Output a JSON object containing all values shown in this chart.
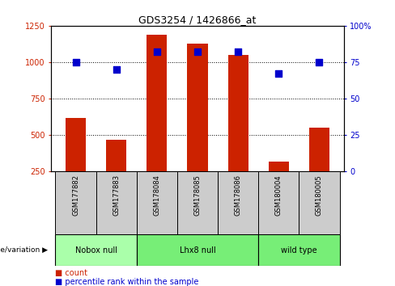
{
  "title": "GDS3254 / 1426866_at",
  "samples": [
    "GSM177882",
    "GSM177883",
    "GSM178084",
    "GSM178085",
    "GSM178086",
    "GSM180004",
    "GSM180005"
  ],
  "counts": [
    620,
    470,
    1190,
    1130,
    1050,
    320,
    550
  ],
  "percentiles": [
    75,
    70,
    82,
    82,
    82,
    67,
    75
  ],
  "bar_color": "#cc2200",
  "dot_color": "#0000cc",
  "ylim_left": [
    250,
    1250
  ],
  "ylim_right": [
    0,
    100
  ],
  "yticks_left": [
    250,
    500,
    750,
    1000,
    1250
  ],
  "yticks_right": [
    0,
    25,
    50,
    75,
    100
  ],
  "ytick_labels_right": [
    "0",
    "25",
    "50",
    "75",
    "100%"
  ],
  "genotype_label": "genotype/variation",
  "legend_count_label": "count",
  "legend_percentile_label": "percentile rank within the sample",
  "bg_color": "#ffffff",
  "plot_bg": "#ffffff",
  "tick_label_color_left": "#cc2200",
  "tick_label_color_right": "#0000cc",
  "bar_width": 0.5,
  "grid_color": "#000000",
  "sample_bg": "#cccccc",
  "groups_info": [
    {
      "label": "Nobox null",
      "indices": [
        0,
        1
      ],
      "color": "#aaffaa"
    },
    {
      "label": "Lhx8 null",
      "indices": [
        2,
        3,
        4
      ],
      "color": "#77ee77"
    },
    {
      "label": "wild type",
      "indices": [
        5,
        6
      ],
      "color": "#77ee77"
    }
  ]
}
